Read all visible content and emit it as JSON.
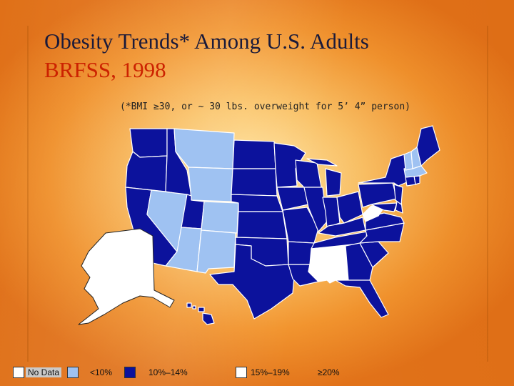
{
  "title_line1": "Obesity Trends* Among U.S. Adults",
  "title_line2": "BRFSS, 1998",
  "subtitle": "(*BMI ≥30, or ~ 30 lbs. overweight for 5’ 4” person)",
  "colors": {
    "no_data": "#ffffff",
    "lt10": "#9fc2f2",
    "10_14": "#0c129c",
    "15_19": "#ffffff",
    "ge20": "#ffffff",
    "title_main": "#1a1a3a",
    "title_accent": "#cc2200"
  },
  "legend": [
    {
      "label": "No Data",
      "category": "no_data"
    },
    {
      "label": "<10%",
      "category": "lt10"
    },
    {
      "label": "10%–14%",
      "category": "10_14"
    },
    {
      "label": "15%–19%",
      "category": "15_19"
    },
    {
      "label": "≥20%",
      "category": "ge20"
    }
  ],
  "states": {
    "WA": "10_14",
    "OR": "10_14",
    "CA": "10_14",
    "ID": "10_14",
    "NV": "lt10",
    "MT": "lt10",
    "WY": "lt10",
    "UT": "10_14",
    "CO": "lt10",
    "AZ": "lt10",
    "NM": "lt10",
    "ND": "10_14",
    "SD": "10_14",
    "NE": "10_14",
    "KS": "10_14",
    "OK": "10_14",
    "TX": "10_14",
    "MN": "10_14",
    "IA": "10_14",
    "MO": "10_14",
    "AR": "10_14",
    "LA": "10_14",
    "WI": "10_14",
    "IL": "10_14",
    "MI": "10_14",
    "IN": "10_14",
    "OH": "10_14",
    "KY": "10_14",
    "TN": "10_14",
    "MS": "no_data",
    "AL": "no_data",
    "GA": "10_14",
    "FL": "10_14",
    "SC": "10_14",
    "NC": "10_14",
    "VA": "10_14",
    "WV": "no_data",
    "MD": "10_14",
    "DE": "10_14",
    "PA": "10_14",
    "NJ": "10_14",
    "NY": "10_14",
    "CT": "10_14",
    "RI": "10_14",
    "MA": "lt10",
    "VT": "lt10",
    "NH": "lt10",
    "ME": "10_14",
    "AK": "no_data",
    "HI": "10_14"
  }
}
